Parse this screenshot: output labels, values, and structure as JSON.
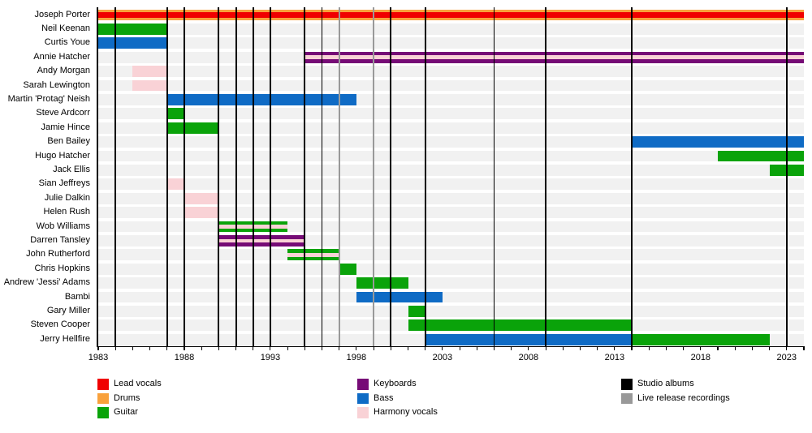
{
  "chart_data": {
    "type": "timeline",
    "x_axis": {
      "start": 1983,
      "end": 2024,
      "tick_every_years": 1,
      "labels": [
        1983,
        1988,
        1993,
        1998,
        2003,
        2008,
        2013,
        2018,
        2023
      ]
    },
    "rows": [
      {
        "name": "Joseph Porter",
        "segments": [
          {
            "start": 1983,
            "end": 2024,
            "role": "drums",
            "overlay_role": "lead_vocals"
          }
        ]
      },
      {
        "name": "Neil Keenan",
        "segments": [
          {
            "start": 1983,
            "end": 1987,
            "role": "guitar",
            "overlay_role": null
          }
        ]
      },
      {
        "name": "Curtis Youe",
        "segments": [
          {
            "start": 1983,
            "end": 1987,
            "role": "bass",
            "overlay_role": null
          }
        ]
      },
      {
        "name": "Annie Hatcher",
        "segments": [
          {
            "start": 1995,
            "end": 2024,
            "role": "keyboards",
            "overlay_role": "harmony_vocals"
          }
        ]
      },
      {
        "name": "Andy Morgan",
        "segments": [
          {
            "start": 1985,
            "end": 1987,
            "role": "harmony_vocals",
            "overlay_role": null
          }
        ]
      },
      {
        "name": "Sarah Lewington",
        "segments": [
          {
            "start": 1985,
            "end": 1987,
            "role": "harmony_vocals",
            "overlay_role": null
          }
        ]
      },
      {
        "name": "Martin 'Protag' Neish",
        "segments": [
          {
            "start": 1987,
            "end": 1998,
            "role": "bass",
            "overlay_role": null
          }
        ]
      },
      {
        "name": "Steve Ardcorr",
        "segments": [
          {
            "start": 1987,
            "end": 1988,
            "role": "guitar",
            "overlay_role": null
          }
        ]
      },
      {
        "name": "Jamie Hince",
        "segments": [
          {
            "start": 1987,
            "end": 1990,
            "role": "guitar",
            "overlay_role": null
          }
        ]
      },
      {
        "name": "Ben Bailey",
        "segments": [
          {
            "start": 2014,
            "end": 2024,
            "role": "bass",
            "overlay_role": null
          }
        ]
      },
      {
        "name": "Hugo Hatcher",
        "segments": [
          {
            "start": 2019,
            "end": 2024,
            "role": "guitar",
            "overlay_role": null
          }
        ]
      },
      {
        "name": "Jack Ellis",
        "segments": [
          {
            "start": 2022,
            "end": 2024,
            "role": "guitar",
            "overlay_role": null
          }
        ]
      },
      {
        "name": "Sian Jeffreys",
        "segments": [
          {
            "start": 1987,
            "end": 1988,
            "role": "harmony_vocals",
            "overlay_role": null
          }
        ]
      },
      {
        "name": "Julie Dalkin",
        "segments": [
          {
            "start": 1988,
            "end": 1990,
            "role": "harmony_vocals",
            "overlay_role": null
          }
        ]
      },
      {
        "name": "Helen Rush",
        "segments": [
          {
            "start": 1988,
            "end": 1990,
            "role": "harmony_vocals",
            "overlay_role": null
          }
        ]
      },
      {
        "name": "Wob Williams",
        "segments": [
          {
            "start": 1990,
            "end": 1994,
            "role": "guitar",
            "overlay_role": "harmony_vocals"
          }
        ]
      },
      {
        "name": "Darren Tansley",
        "segments": [
          {
            "start": 1990,
            "end": 1995,
            "role": "keyboards",
            "overlay_role": "harmony_vocals"
          }
        ]
      },
      {
        "name": "John Rutherford",
        "segments": [
          {
            "start": 1994,
            "end": 1997,
            "role": "guitar",
            "overlay_role": "harmony_vocals"
          }
        ]
      },
      {
        "name": "Chris Hopkins",
        "segments": [
          {
            "start": 1997,
            "end": 1998,
            "role": "guitar",
            "overlay_role": null
          }
        ]
      },
      {
        "name": "Andrew 'Jessi' Adams",
        "segments": [
          {
            "start": 1998,
            "end": 2001,
            "role": "guitar",
            "overlay_role": null
          }
        ]
      },
      {
        "name": "Bambi",
        "segments": [
          {
            "start": 1998,
            "end": 2003,
            "role": "bass",
            "overlay_role": null
          }
        ]
      },
      {
        "name": "Gary Miller",
        "segments": [
          {
            "start": 2001,
            "end": 2002,
            "role": "guitar",
            "overlay_role": null
          }
        ]
      },
      {
        "name": "Steven Cooper",
        "segments": [
          {
            "start": 2001,
            "end": 2014,
            "role": "guitar",
            "overlay_role": null
          }
        ]
      },
      {
        "name": "Jerry Hellfire",
        "segments": [
          {
            "start": 2002,
            "end": 2014,
            "role": "bass",
            "overlay_role": null
          },
          {
            "start": 2014,
            "end": 2022,
            "role": "guitar",
            "overlay_role": null
          }
        ]
      }
    ],
    "events": {
      "studio_albums": [
        1984,
        1987,
        1988,
        1990,
        1991,
        1992,
        1993,
        1995,
        1996,
        2000,
        2002,
        2006,
        2009,
        2014,
        2023
      ],
      "live_releases": [
        1997,
        1999
      ]
    },
    "legend": {
      "columns": [
        [
          {
            "label": "Lead vocals",
            "color_key": "lead_vocals"
          },
          {
            "label": "Drums",
            "color_key": "drums"
          },
          {
            "label": "Guitar",
            "color_key": "guitar"
          }
        ],
        [
          {
            "label": "Keyboards",
            "color_key": "keyboards"
          },
          {
            "label": "Bass",
            "color_key": "bass"
          },
          {
            "label": "Harmony vocals",
            "color_key": "harmony_vocals"
          }
        ],
        [
          {
            "label": "Studio albums",
            "color_key": "studio_albums"
          },
          {
            "label": "Live release recordings",
            "color_key": "live_releases"
          }
        ]
      ]
    },
    "colors": {
      "lead_vocals": "#f00000",
      "drums": "#f9a13c",
      "guitar": "#0aa30a",
      "keyboards": "#760b76",
      "bass": "#0f6bc5",
      "harmony_vocals": "#f9d2d6",
      "studio_albums": "#000000",
      "live_releases": "#999999",
      "row_band": "#f1f1f1"
    }
  }
}
